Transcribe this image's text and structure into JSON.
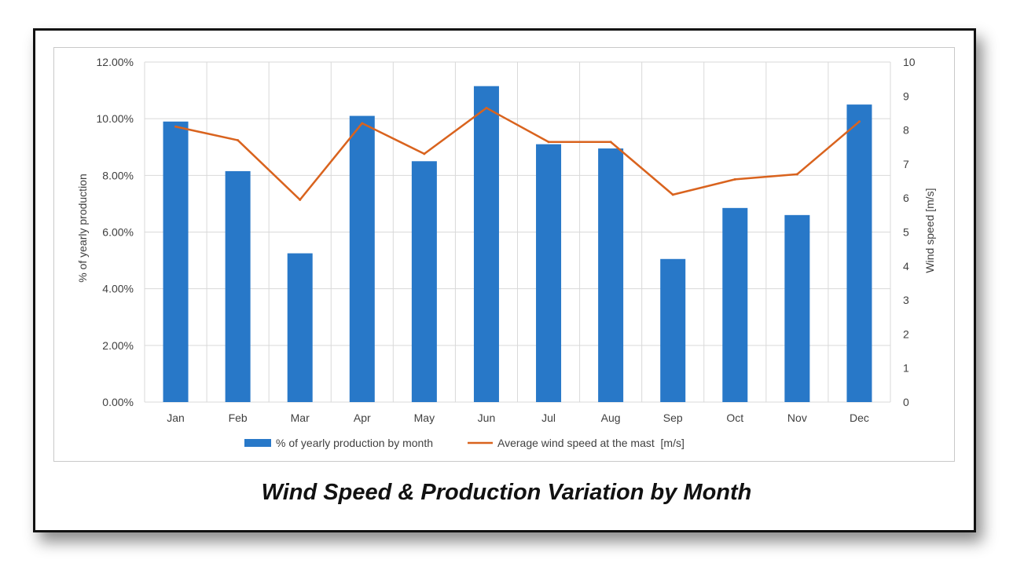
{
  "caption": "Wind Speed & Production Variation by Month",
  "chart_data": {
    "type": "bar",
    "title": "",
    "categories": [
      "Jan",
      "Feb",
      "Mar",
      "Apr",
      "May",
      "Jun",
      "Jul",
      "Aug",
      "Sep",
      "Oct",
      "Nov",
      "Dec"
    ],
    "series": [
      {
        "name": "% of yearly production by month",
        "type": "bar",
        "axis": "left",
        "color": "#2878C8",
        "values": [
          9.9,
          8.15,
          5.25,
          10.1,
          8.5,
          11.15,
          9.1,
          8.95,
          5.05,
          6.85,
          6.6,
          10.5
        ]
      },
      {
        "name": "Average wind speed at the mast  [m/s]",
        "type": "line",
        "axis": "right",
        "color": "#D9631E",
        "values": [
          8.1,
          7.7,
          5.95,
          8.2,
          7.3,
          8.65,
          7.65,
          7.65,
          6.1,
          6.55,
          6.7,
          8.25
        ]
      }
    ],
    "y_left": {
      "label": "% of yearly production",
      "min": 0,
      "max": 12,
      "step": 2,
      "tick_labels": [
        "0.00%",
        "2.00%",
        "4.00%",
        "6.00%",
        "8.00%",
        "10.00%",
        "12.00%"
      ]
    },
    "y_right": {
      "label": "Wind speed [m/s]",
      "min": 0,
      "max": 10,
      "step": 1,
      "tick_labels": [
        "0",
        "1",
        "2",
        "3",
        "4",
        "5",
        "6",
        "7",
        "8",
        "9",
        "10"
      ]
    },
    "grid": true,
    "legend": "bottom"
  }
}
